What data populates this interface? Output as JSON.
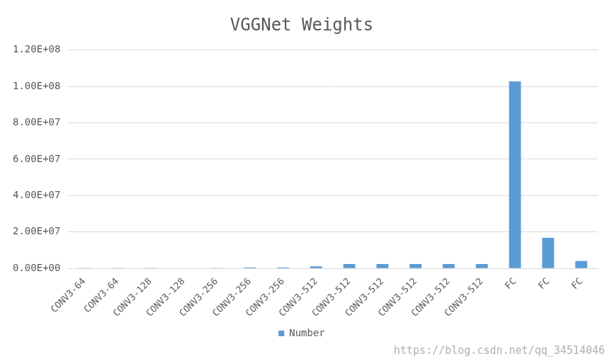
{
  "chart_data": {
    "type": "bar",
    "title": "VGGNet Weights",
    "categories": [
      "CONV3-64",
      "CONV3-64",
      "CONV3-128",
      "CONV3-128",
      "CONV3-256",
      "CONV3-256",
      "CONV3-256",
      "CONV3-512",
      "CONV3-512",
      "CONV3-512",
      "CONV3-512",
      "CONV3-512",
      "CONV3-512",
      "FC",
      "FC",
      "FC"
    ],
    "series": [
      {
        "name": "Number",
        "color": "#5b9bd5",
        "values": [
          1728,
          36864,
          73728,
          147456,
          294912,
          589824,
          589824,
          1179648,
          2359296,
          2359296,
          2359296,
          2359296,
          2359296,
          102760448,
          16777216,
          4096000
        ]
      }
    ],
    "ylim": [
      0,
      120000000
    ],
    "yticks": [
      {
        "value": 0,
        "label": "0.00E+00"
      },
      {
        "value": 20000000,
        "label": "2.00E+07"
      },
      {
        "value": 40000000,
        "label": "4.00E+07"
      },
      {
        "value": 60000000,
        "label": "6.00E+07"
      },
      {
        "value": 80000000,
        "label": "8.00E+07"
      },
      {
        "value": 100000000,
        "label": "1.00E+08"
      },
      {
        "value": 120000000,
        "label": "1.20E+08"
      }
    ],
    "grid": true,
    "legend": "bottom",
    "annotation": "https://blog.csdn.net/qq_34514046"
  }
}
